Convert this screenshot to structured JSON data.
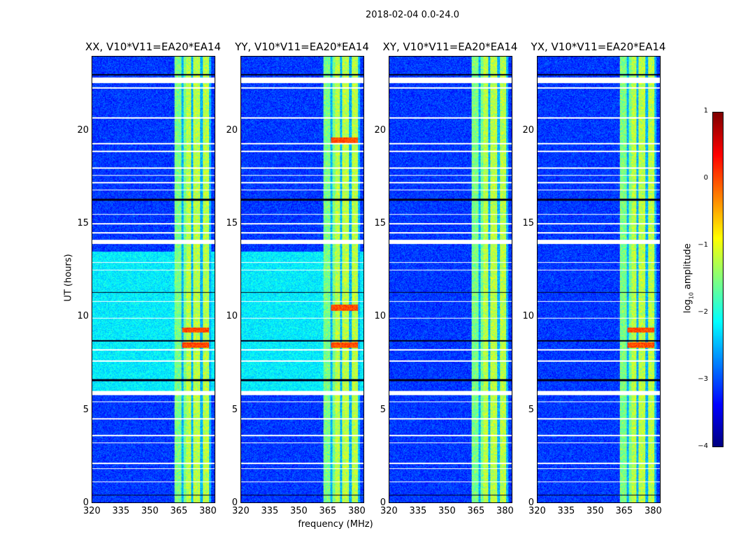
{
  "figure_title": "2018-02-04 0.0-24.0",
  "chart_data": {
    "type": "heatmap",
    "title": "2018-02-04 0.0-24.0",
    "xlabel": "frequency (MHz)",
    "ylabel": "UT (hours)",
    "xlim": [
      320,
      384
    ],
    "ylim": [
      0,
      24
    ],
    "xticks": [
      "320",
      "335",
      "350",
      "365",
      "380"
    ],
    "xtick_values": [
      320,
      335,
      350,
      365,
      380
    ],
    "yticks": [
      "0",
      "5",
      "10",
      "15",
      "20"
    ],
    "ytick_values": [
      0,
      5,
      10,
      15,
      20
    ],
    "panels": [
      {
        "title": "XX, V10*V11=EA20*EA14",
        "bright_background_hours": [
          6.0,
          13.5
        ],
        "hot_hours": [
          9.3,
          8.5
        ]
      },
      {
        "title": "YY, V10*V11=EA20*EA14",
        "bright_background_hours": [
          6.0,
          13.5
        ],
        "hot_hours": [
          10.5,
          19.5,
          8.5
        ]
      },
      {
        "title": "XY, V10*V11=EA20*EA14",
        "bright_background_hours": null,
        "hot_hours": []
      },
      {
        "title": "YX, V10*V11=EA20*EA14",
        "bright_background_hours": null,
        "hot_hours": [
          9.3,
          8.5
        ]
      }
    ],
    "rfi_band_mhz": [
      363,
      382
    ],
    "band_gaps_mhz": [
      367,
      372,
      377,
      381.5
    ],
    "flagged_white_hours": [
      [
        22.6,
        22.9
      ],
      [
        22.3,
        22.35
      ],
      [
        20.7,
        20.75
      ],
      [
        19.3,
        19.35
      ],
      [
        18.9,
        18.95
      ],
      [
        18.0,
        18.05
      ],
      [
        17.6,
        17.65
      ],
      [
        17.2,
        17.25
      ],
      [
        16.8,
        16.85
      ],
      [
        15.5,
        15.55
      ],
      [
        15.0,
        15.05
      ],
      [
        14.5,
        14.55
      ],
      [
        13.95,
        14.15
      ],
      [
        12.9,
        12.95
      ],
      [
        12.5,
        12.55
      ],
      [
        10.8,
        10.85
      ],
      [
        9.9,
        9.95
      ],
      [
        8.2,
        8.25
      ],
      [
        7.6,
        7.65
      ],
      [
        5.8,
        6.0
      ],
      [
        5.4,
        5.45
      ],
      [
        4.5,
        4.55
      ],
      [
        3.6,
        3.65
      ],
      [
        3.2,
        3.25
      ],
      [
        2.1,
        2.15
      ],
      [
        1.8,
        1.85
      ],
      [
        1.1,
        1.15
      ]
    ],
    "flagged_black_hours": [
      [
        23.0,
        23.08
      ],
      [
        16.25,
        16.35
      ],
      [
        11.3,
        11.35
      ],
      [
        8.7,
        8.75
      ],
      [
        6.55,
        6.65
      ],
      [
        0.4,
        0.45
      ]
    ],
    "colorbar": {
      "label_prefix": "log",
      "label_sub": "10",
      "label_suffix": " amplitude",
      "range": [
        -4,
        1
      ],
      "ticks": [
        "1",
        "0",
        "−1",
        "−2",
        "−3",
        "−4"
      ],
      "tick_values": [
        1,
        0,
        -1,
        -2,
        -3,
        -4
      ],
      "colormap": "jet"
    }
  }
}
